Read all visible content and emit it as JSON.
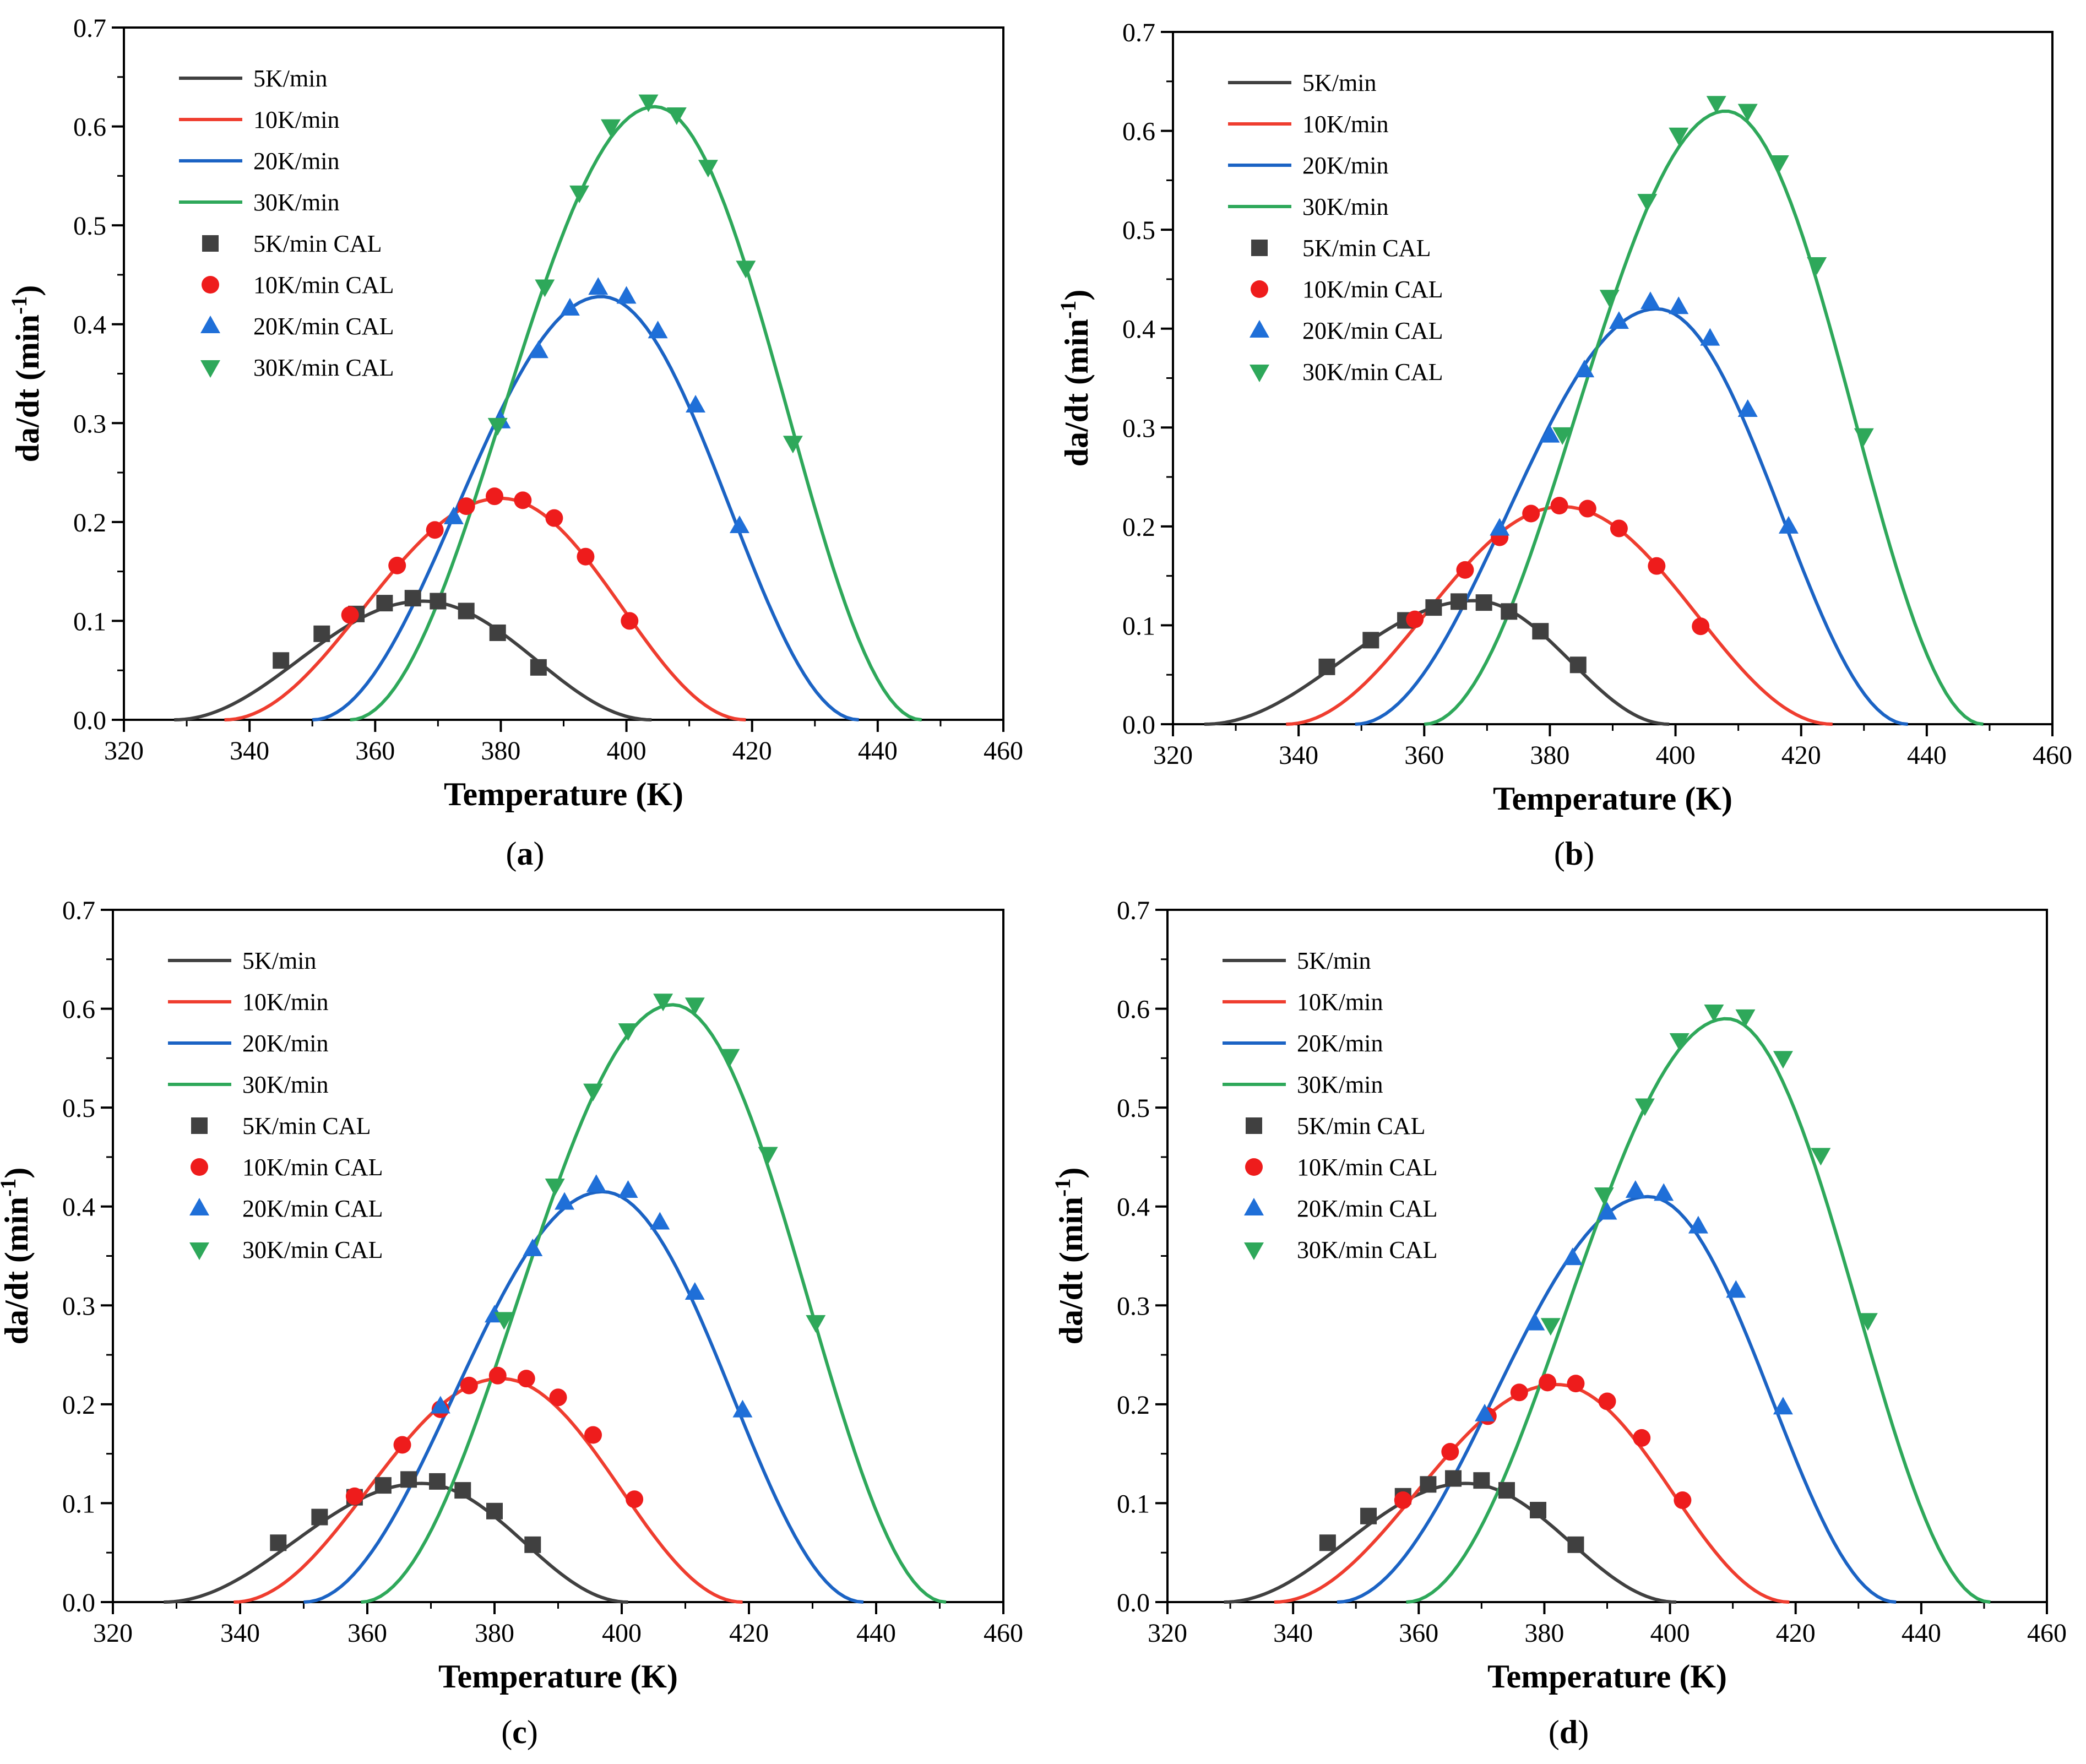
{
  "chart_data": [
    {
      "type": "line",
      "panel_label": "a",
      "xlabel": "Temperature (K)",
      "ylabel_main": "da/dt (min",
      "ylabel_sup": "-1",
      "ylabel_close": ")",
      "xlim": [
        320,
        460
      ],
      "ylim": [
        0,
        0.7
      ],
      "xticks": [
        320,
        340,
        360,
        380,
        400,
        420,
        440,
        460
      ],
      "yticks": [
        "0.0",
        "0.1",
        "0.2",
        "0.3",
        "0.4",
        "0.5",
        "0.6",
        "0.7"
      ],
      "grid": false,
      "legend_position": "top-left",
      "series": [
        {
          "name": "5K/min",
          "kind": "curve",
          "color": "#404040",
          "peak_x": 367.5,
          "peak_y": 0.12,
          "start_x": 328,
          "end_x": 404
        },
        {
          "name": "10K/min",
          "kind": "curve",
          "color": "#ef3d2f",
          "peak_x": 380,
          "peak_y": 0.224,
          "start_x": 336,
          "end_x": 419
        },
        {
          "name": "20K/min",
          "kind": "curve",
          "color": "#1b63c4",
          "peak_x": 396,
          "peak_y": 0.428,
          "start_x": 350,
          "end_x": 437
        },
        {
          "name": "30K/min",
          "kind": "curve",
          "color": "#2ea85a",
          "peak_x": 404.5,
          "peak_y": 0.62,
          "start_x": 356,
          "end_x": 447
        },
        {
          "name": "5K/min CAL",
          "kind": "marker",
          "marker": "square",
          "color": "#404040",
          "x": [
            345,
            351.5,
            357,
            361.5,
            366,
            370,
            374.5,
            379.5,
            386
          ],
          "y": [
            0.06,
            0.087,
            0.107,
            0.118,
            0.123,
            0.12,
            0.11,
            0.088,
            0.053
          ]
        },
        {
          "name": "10K/min CAL",
          "kind": "marker",
          "marker": "circle",
          "color": "#ee1c1c",
          "x": [
            356,
            363.5,
            369.5,
            374.5,
            379,
            383.5,
            388.5,
            393.5,
            400.5
          ],
          "y": [
            0.106,
            0.156,
            0.192,
            0.216,
            0.226,
            0.222,
            0.204,
            0.165,
            0.1
          ]
        },
        {
          "name": "20K/min CAL",
          "kind": "marker",
          "marker": "triangle-up",
          "color": "#1f6fd8",
          "x": [
            372.5,
            380,
            386,
            391,
            395.5,
            400,
            405,
            411,
            418
          ],
          "y": [
            0.205,
            0.302,
            0.373,
            0.416,
            0.437,
            0.428,
            0.393,
            0.318,
            0.196
          ]
        },
        {
          "name": "30K/min CAL",
          "kind": "marker",
          "marker": "triangle-down",
          "color": "#2ea85a",
          "x": [
            379.5,
            387,
            392.5,
            397.5,
            403.5,
            408,
            413,
            419,
            426.5
          ],
          "y": [
            0.298,
            0.438,
            0.533,
            0.6,
            0.625,
            0.612,
            0.559,
            0.457,
            0.28
          ]
        }
      ]
    },
    {
      "type": "line",
      "panel_label": "b",
      "xlabel": "Temperature (K)",
      "ylabel_main": "da/dt (min",
      "ylabel_sup": "-1",
      "ylabel_close": ")",
      "xlim": [
        320,
        460
      ],
      "ylim": [
        0,
        0.7
      ],
      "xticks": [
        320,
        340,
        360,
        380,
        400,
        420,
        440,
        460
      ],
      "yticks": [
        "0.0",
        "0.1",
        "0.2",
        "0.3",
        "0.4",
        "0.5",
        "0.6",
        "0.7"
      ],
      "grid": false,
      "legend_position": "top-left",
      "series": [
        {
          "name": "5K/min",
          "kind": "curve",
          "color": "#404040",
          "peak_x": 368,
          "peak_y": 0.125,
          "start_x": 325,
          "end_x": 399
        },
        {
          "name": "10K/min",
          "kind": "curve",
          "color": "#ef3d2f",
          "peak_x": 382,
          "peak_y": 0.22,
          "start_x": 338,
          "end_x": 425
        },
        {
          "name": "20K/min",
          "kind": "curve",
          "color": "#1b63c4",
          "peak_x": 397,
          "peak_y": 0.42,
          "start_x": 349,
          "end_x": 437
        },
        {
          "name": "30K/min",
          "kind": "curve",
          "color": "#2ea85a",
          "peak_x": 408,
          "peak_y": 0.62,
          "start_x": 360,
          "end_x": 449
        },
        {
          "name": "5K/min CAL",
          "kind": "marker",
          "marker": "square",
          "color": "#404040",
          "x": [
            344.5,
            351.5,
            357,
            361.5,
            365.5,
            369.5,
            373.5,
            378.5,
            384.5
          ],
          "y": [
            0.058,
            0.085,
            0.105,
            0.118,
            0.124,
            0.123,
            0.114,
            0.094,
            0.06
          ]
        },
        {
          "name": "10K/min CAL",
          "kind": "marker",
          "marker": "circle",
          "color": "#ee1c1c",
          "x": [
            358.5,
            366.5,
            372,
            377,
            381.5,
            386,
            391,
            397,
            404
          ],
          "y": [
            0.106,
            0.156,
            0.189,
            0.213,
            0.221,
            0.218,
            0.198,
            0.16,
            0.099
          ]
        },
        {
          "name": "20K/min CAL",
          "kind": "marker",
          "marker": "triangle-up",
          "color": "#1f6fd8",
          "x": [
            372,
            380,
            385.5,
            391,
            396,
            400.5,
            405.5,
            411.5,
            418
          ],
          "y": [
            0.198,
            0.292,
            0.358,
            0.407,
            0.427,
            0.422,
            0.39,
            0.318,
            0.2
          ]
        },
        {
          "name": "30K/min CAL",
          "kind": "marker",
          "marker": "triangle-down",
          "color": "#2ea85a",
          "x": [
            382,
            389.5,
            395.5,
            400.5,
            406.5,
            411.5,
            416.5,
            422.5,
            430
          ],
          "y": [
            0.293,
            0.432,
            0.529,
            0.596,
            0.628,
            0.62,
            0.568,
            0.465,
            0.292
          ]
        }
      ]
    },
    {
      "type": "line",
      "panel_label": "c",
      "xlabel": "Temperature (K)",
      "ylabel_main": "da/dt (min",
      "ylabel_sup": "-1",
      "ylabel_close": ")",
      "xlim": [
        320,
        460
      ],
      "ylim": [
        0,
        0.7
      ],
      "xticks": [
        320,
        340,
        360,
        380,
        400,
        420,
        440,
        460
      ],
      "yticks": [
        "0.0",
        "0.1",
        "0.2",
        "0.3",
        "0.4",
        "0.5",
        "0.6",
        "0.7"
      ],
      "grid": false,
      "legend_position": "top-left",
      "series": [
        {
          "name": "5K/min",
          "kind": "curve",
          "color": "#404040",
          "peak_x": 368.5,
          "peak_y": 0.12,
          "start_x": 328,
          "end_x": 401
        },
        {
          "name": "10K/min",
          "kind": "curve",
          "color": "#ef3d2f",
          "peak_x": 381,
          "peak_y": 0.226,
          "start_x": 339,
          "end_x": 419
        },
        {
          "name": "20K/min",
          "kind": "curve",
          "color": "#1b63c4",
          "peak_x": 397,
          "peak_y": 0.415,
          "start_x": 350,
          "end_x": 438
        },
        {
          "name": "30K/min",
          "kind": "curve",
          "color": "#2ea85a",
          "peak_x": 408,
          "peak_y": 0.604,
          "start_x": 359,
          "end_x": 451
        },
        {
          "name": "5K/min CAL",
          "kind": "marker",
          "marker": "square",
          "color": "#404040",
          "x": [
            346,
            352.5,
            358,
            362.5,
            366.5,
            371,
            375,
            380,
            386
          ],
          "y": [
            0.06,
            0.086,
            0.106,
            0.118,
            0.124,
            0.122,
            0.113,
            0.092,
            0.058
          ]
        },
        {
          "name": "10K/min CAL",
          "kind": "marker",
          "marker": "circle",
          "color": "#ee1c1c",
          "x": [
            358,
            365.5,
            371.5,
            376,
            380.5,
            385,
            390,
            395.5,
            402
          ],
          "y": [
            0.107,
            0.159,
            0.195,
            0.219,
            0.229,
            0.226,
            0.207,
            0.169,
            0.104
          ]
        },
        {
          "name": "20K/min CAL",
          "kind": "marker",
          "marker": "triangle-up",
          "color": "#1f6fd8",
          "x": [
            371.5,
            380,
            386,
            391,
            396,
            401,
            406,
            411.5,
            419
          ],
          "y": [
            0.198,
            0.29,
            0.357,
            0.404,
            0.422,
            0.416,
            0.384,
            0.313,
            0.194
          ]
        },
        {
          "name": "30K/min CAL",
          "kind": "marker",
          "marker": "triangle-down",
          "color": "#2ea85a",
          "x": [
            381.5,
            389.5,
            395.5,
            401,
            406.5,
            411.5,
            417,
            423,
            430.5
          ],
          "y": [
            0.286,
            0.421,
            0.517,
            0.578,
            0.608,
            0.604,
            0.552,
            0.453,
            0.283
          ]
        }
      ]
    },
    {
      "type": "line",
      "panel_label": "d",
      "xlabel": "Temperature (K)",
      "ylabel_main": "da/dt (min",
      "ylabel_sup": "-1",
      "ylabel_close": ")",
      "xlim": [
        320,
        460
      ],
      "ylim": [
        0,
        0.7
      ],
      "xticks": [
        320,
        340,
        360,
        380,
        400,
        420,
        440,
        460
      ],
      "yticks": [
        "0.0",
        "0.1",
        "0.2",
        "0.3",
        "0.4",
        "0.5",
        "0.6",
        "0.7"
      ],
      "grid": false,
      "legend_position": "top-left",
      "series": [
        {
          "name": "5K/min",
          "kind": "curve",
          "color": "#404040",
          "peak_x": 367.5,
          "peak_y": 0.12,
          "start_x": 329,
          "end_x": 401
        },
        {
          "name": "10K/min",
          "kind": "curve",
          "color": "#ef3d2f",
          "peak_x": 382,
          "peak_y": 0.22,
          "start_x": 337,
          "end_x": 419
        },
        {
          "name": "20K/min",
          "kind": "curve",
          "color": "#1b63c4",
          "peak_x": 396.5,
          "peak_y": 0.41,
          "start_x": 347,
          "end_x": 436
        },
        {
          "name": "30K/min",
          "kind": "curve",
          "color": "#2ea85a",
          "peak_x": 409,
          "peak_y": 0.59,
          "start_x": 358,
          "end_x": 451
        },
        {
          "name": "5K/min CAL",
          "kind": "marker",
          "marker": "square",
          "color": "#404040",
          "x": [
            345.5,
            352,
            357.5,
            361.5,
            365.5,
            370,
            374,
            379,
            385
          ],
          "y": [
            0.06,
            0.087,
            0.107,
            0.119,
            0.125,
            0.123,
            0.113,
            0.093,
            0.058
          ]
        },
        {
          "name": "10K/min CAL",
          "kind": "marker",
          "marker": "circle",
          "color": "#ee1c1c",
          "x": [
            357.5,
            365,
            371,
            376,
            380.5,
            385,
            390,
            395.5,
            402
          ],
          "y": [
            0.103,
            0.152,
            0.188,
            0.212,
            0.222,
            0.221,
            0.203,
            0.166,
            0.103
          ]
        },
        {
          "name": "20K/min CAL",
          "kind": "marker",
          "marker": "triangle-up",
          "color": "#1f6fd8",
          "x": [
            370.5,
            378.5,
            384.5,
            390,
            394.5,
            399,
            404.5,
            410.5,
            418
          ],
          "y": [
            0.19,
            0.282,
            0.348,
            0.394,
            0.416,
            0.413,
            0.38,
            0.315,
            0.197
          ]
        },
        {
          "name": "30K/min CAL",
          "kind": "marker",
          "marker": "triangle-down",
          "color": "#2ea85a",
          "x": [
            381,
            389.5,
            396,
            401.5,
            407,
            412,
            418,
            424,
            431.5
          ],
          "y": [
            0.28,
            0.412,
            0.502,
            0.568,
            0.597,
            0.592,
            0.55,
            0.452,
            0.285
          ]
        }
      ]
    }
  ]
}
